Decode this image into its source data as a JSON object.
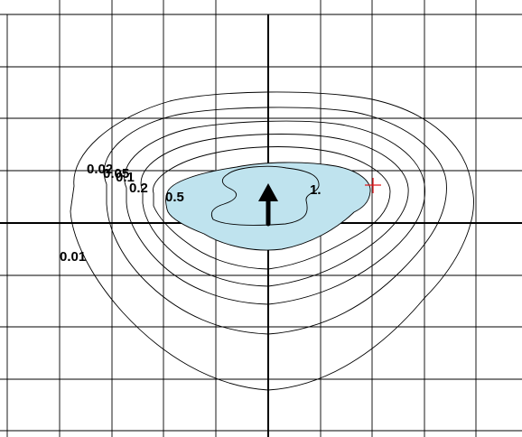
{
  "contour_labels": {
    "c001": "0.01",
    "c002": "0.02",
    "c005": "0.05",
    "c01": "0.1",
    "c02": "0.2",
    "c05": "0.5",
    "c1": "1."
  },
  "colors": {
    "background": "#ffffff",
    "grid": "#000000",
    "contour": "#000000",
    "fill": "#bfe3ee",
    "marker": "#e0191d",
    "arrow": "#000000"
  },
  "icons": {
    "arrow": "up-arrow-icon",
    "marker": "red-cross-marker-icon"
  }
}
